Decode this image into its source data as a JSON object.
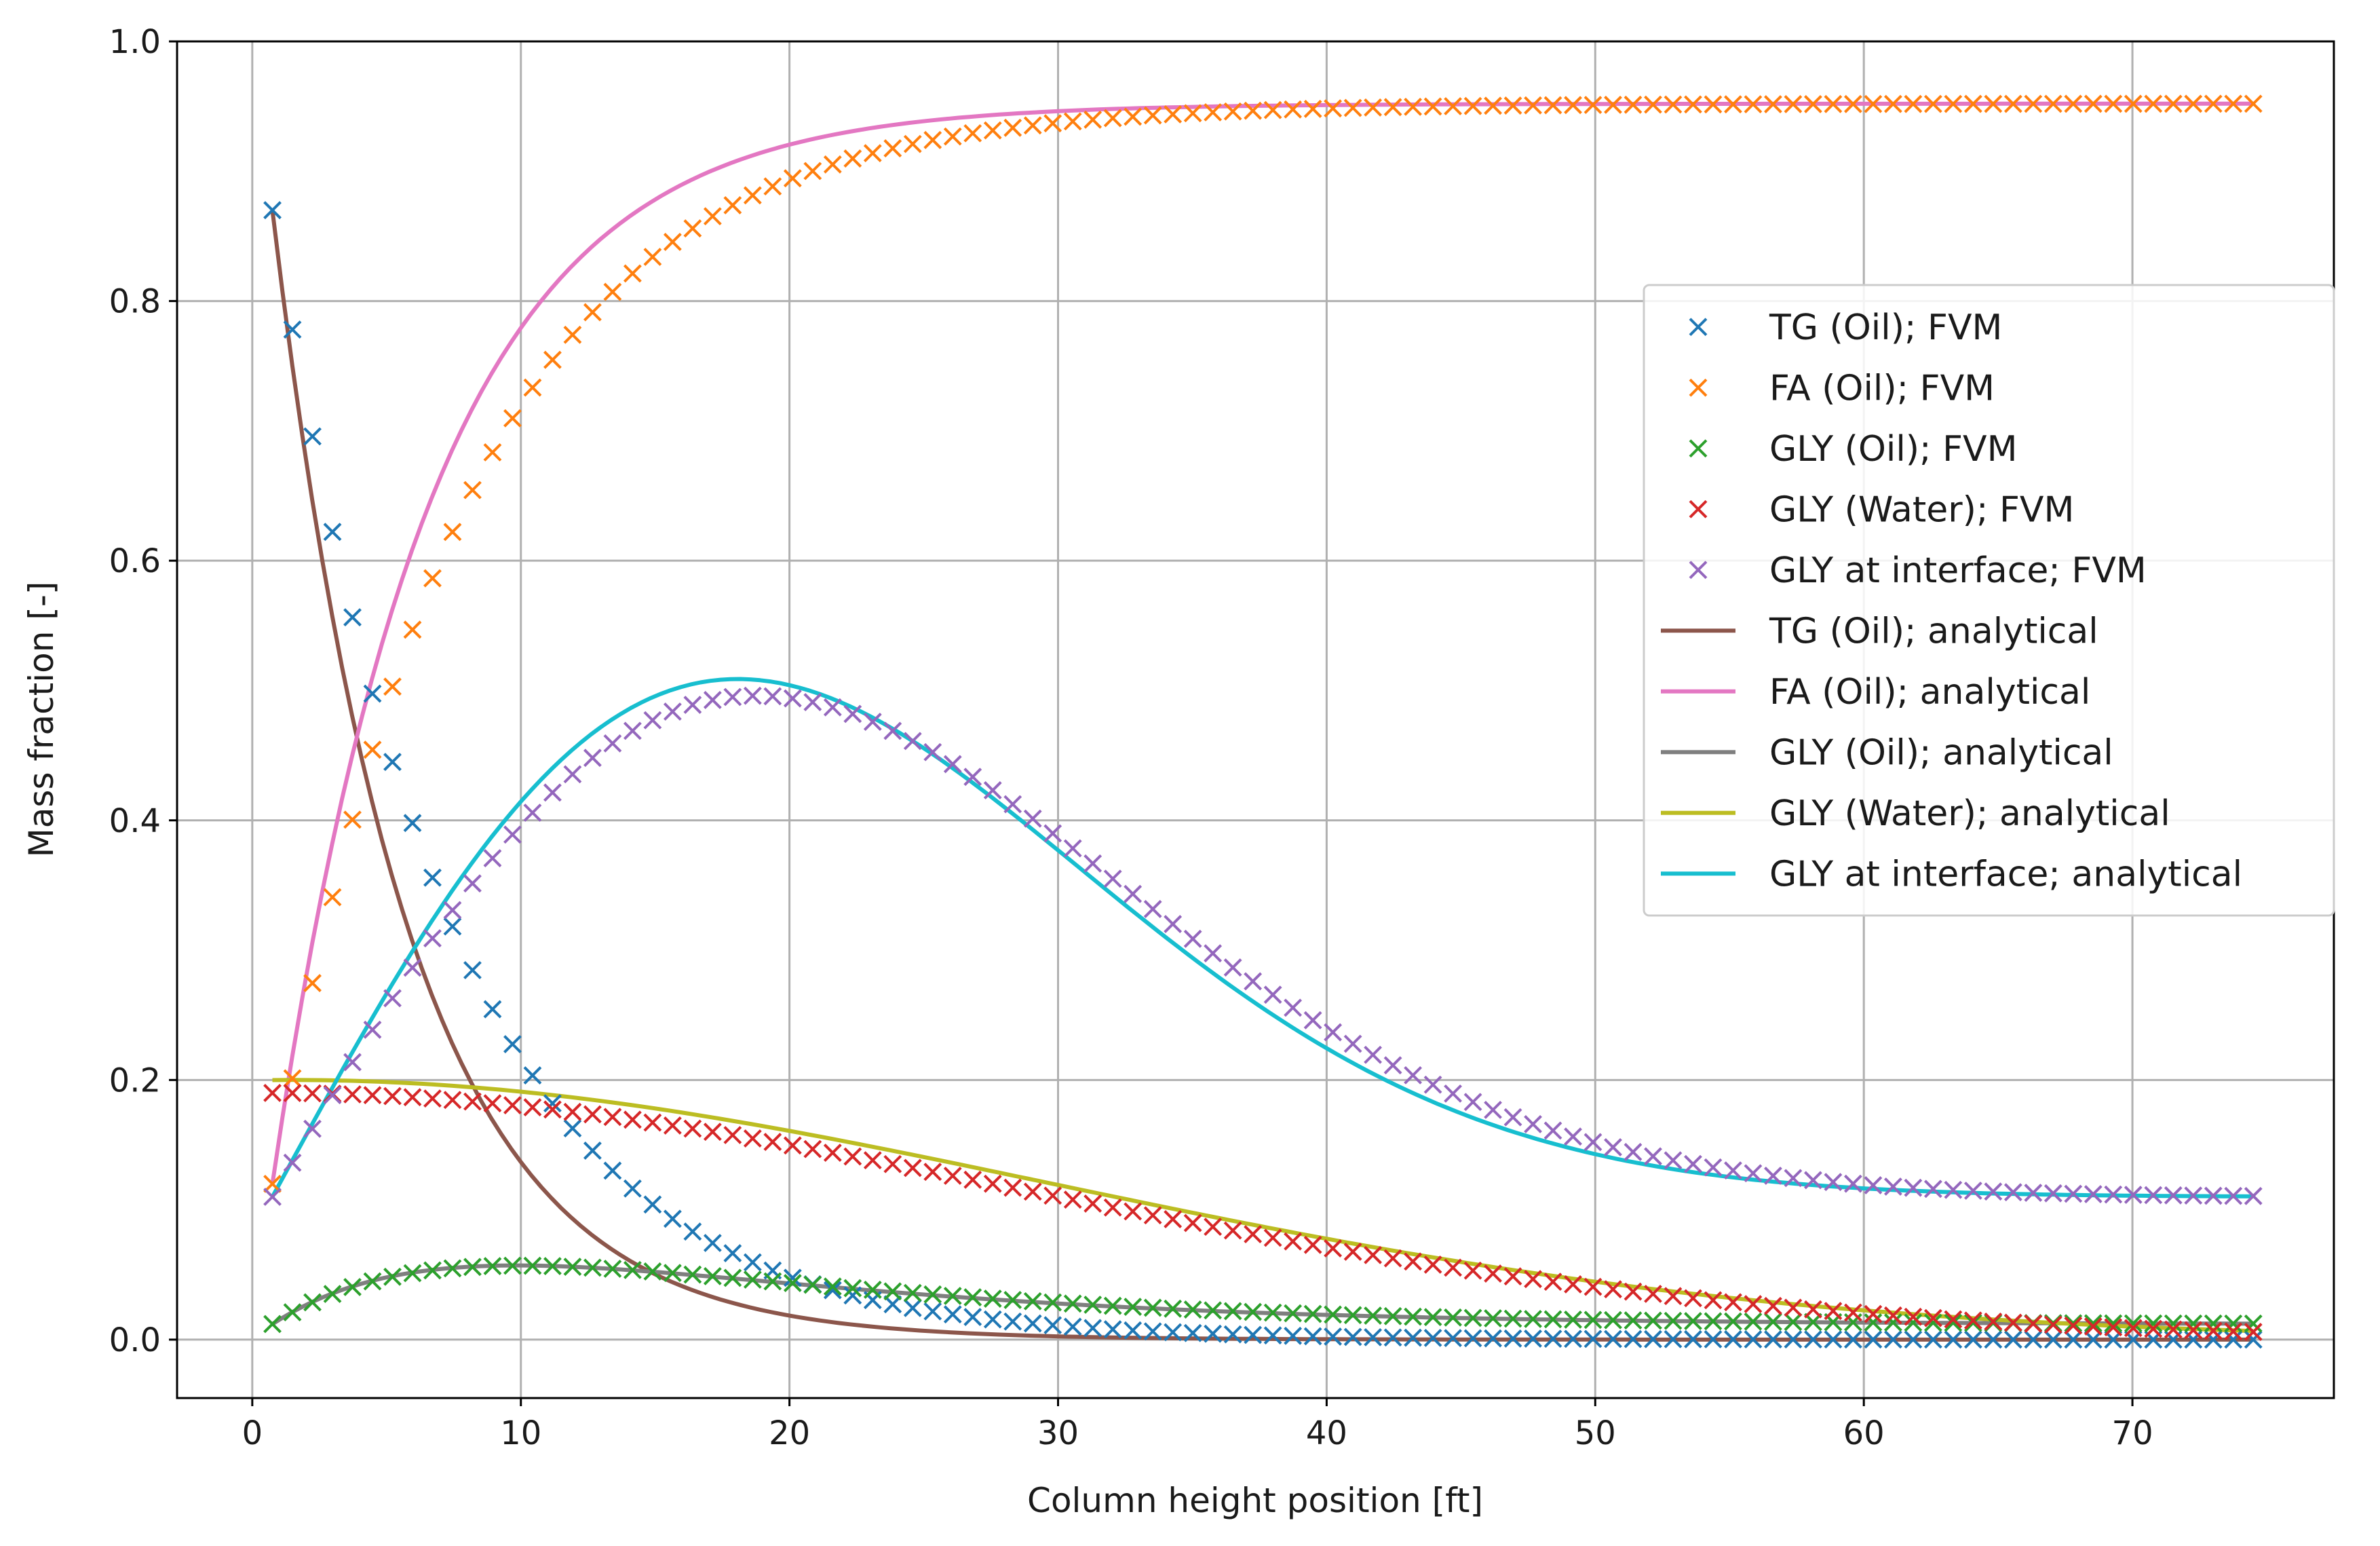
{
  "chart_data": {
    "type": "line",
    "title": "",
    "xlabel": "Column height position [ft]",
    "ylabel": "Mass fraction [-]",
    "xlim": [
      -2.8,
      77.5
    ],
    "ylim": [
      -0.045,
      1.0
    ],
    "xticks": [
      0,
      10,
      20,
      30,
      40,
      50,
      60,
      70
    ],
    "yticks": [
      0.0,
      0.2,
      0.4,
      0.6,
      0.8,
      1.0
    ],
    "xtick_labels": [
      "0",
      "10",
      "20",
      "30",
      "40",
      "50",
      "60",
      "70"
    ],
    "ytick_labels": [
      "0.0",
      "0.2",
      "0.4",
      "0.6",
      "0.8",
      "1.0"
    ],
    "grid": true,
    "legend_position": "center-right",
    "x_range": [
      0.75,
      74.5
    ],
    "fvm_points": 100,
    "analytical_points": 200,
    "series": [
      {
        "name": "TG (Oil); FVM",
        "kind": "scatter",
        "marker": "x",
        "color": "#1f77b4",
        "model": "decay",
        "params": {
          "a": 0.87,
          "x0": 0.75,
          "k": 0.15
        }
      },
      {
        "name": "FA (Oil); FVM",
        "kind": "scatter",
        "marker": "x",
        "color": "#ff7f0e",
        "model": "rise",
        "params": {
          "base": 0.12,
          "top": 0.952,
          "x0": 0.75,
          "k": 0.138
        }
      },
      {
        "name": "GLY (Oil); FVM",
        "kind": "scatter",
        "marker": "x",
        "color": "#2ca02c",
        "model": "hump",
        "params": {
          "A": 0.0132,
          "x0": 0.75,
          "k": 0.108,
          "base": 0.012
        }
      },
      {
        "name": "GLY (Water); FVM",
        "kind": "scatter",
        "marker": "x",
        "color": "#d62728",
        "model": "gauss",
        "params": {
          "A": 0.19,
          "mu": 0.75,
          "sigma": 28
        }
      },
      {
        "name": "GLY at interface; FVM",
        "kind": "scatter",
        "marker": "x",
        "color": "#9467bd",
        "model": "weibull",
        "params": {
          "x0": 0.75,
          "a": 0.11,
          "lambda": 25.5,
          "beta": 2.0,
          "pfac": 0.9
        }
      },
      {
        "name": "TG (Oil); analytical",
        "kind": "line",
        "color": "#8c564b",
        "model": "decay",
        "params": {
          "a": 0.87,
          "x0": 0.75,
          "k": 0.2
        }
      },
      {
        "name": "FA (Oil); analytical",
        "kind": "line",
        "color": "#e377c2",
        "model": "rise",
        "params": {
          "base": 0.12,
          "top": 0.952,
          "x0": 0.75,
          "k": 0.17
        }
      },
      {
        "name": "GLY (Oil); analytical",
        "kind": "line",
        "color": "#7f7f7f",
        "model": "hump",
        "params": {
          "A": 0.0135,
          "x0": 0.75,
          "k": 0.11,
          "base": 0.012
        }
      },
      {
        "name": "GLY (Water); analytical",
        "kind": "line",
        "color": "#bcbd22",
        "model": "gauss",
        "params": {
          "A": 0.2,
          "mu": 1.5,
          "sigma": 28
        }
      },
      {
        "name": "GLY at interface; analytical",
        "kind": "line",
        "color": "#17becf",
        "model": "weibull",
        "params": {
          "x0": 0.75,
          "a": 0.11,
          "lambda": 24.5,
          "beta": 2.0,
          "pfac": 0.93
        }
      }
    ]
  }
}
